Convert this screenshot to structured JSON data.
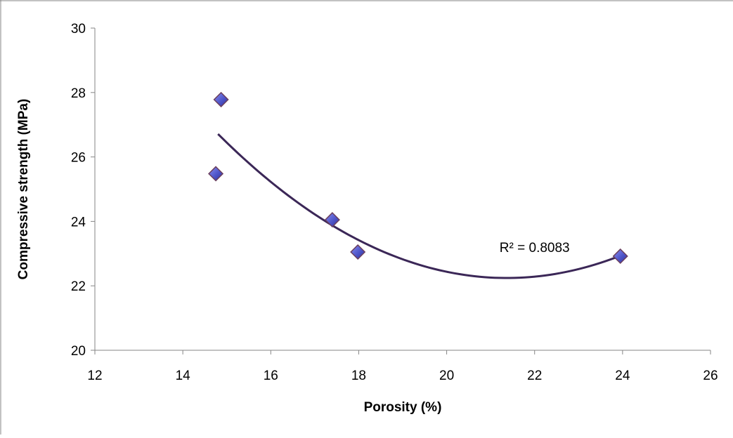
{
  "chart_data": {
    "type": "scatter",
    "title": "",
    "xlabel": "Porosity (%)",
    "ylabel": "Compressive strength (MPa)",
    "xlim": [
      12,
      26
    ],
    "ylim": [
      20,
      30
    ],
    "xticks": [
      12,
      14,
      16,
      18,
      20,
      22,
      24,
      26
    ],
    "yticks": [
      20,
      22,
      24,
      26,
      28,
      30
    ],
    "xtick_labels": [
      "12",
      "14",
      "16",
      "18",
      "20",
      "22",
      "24",
      "26"
    ],
    "ytick_labels": [
      "20",
      "22",
      "24",
      "26",
      "28",
      "30"
    ],
    "grid": false,
    "legend": "none",
    "series": [
      {
        "x": [
          14.75,
          14.87,
          17.4,
          17.98,
          23.95
        ],
        "y": [
          25.48,
          27.78,
          24.05,
          23.05,
          22.92
        ],
        "marker": "diamond",
        "color": "#5a5fc4"
      }
    ],
    "trendline": {
      "type": "polynomial",
      "order": 2,
      "color": "#3b2757",
      "x_range": [
        14.8,
        23.95
      ],
      "points": [
        {
          "x": 14.8,
          "y": 26.7
        },
        {
          "x": 17.4,
          "y": 23.9
        },
        {
          "x": 20.0,
          "y": 22.45
        },
        {
          "x": 21.36,
          "y": 22.2
        },
        {
          "x": 23.95,
          "y": 22.95
        }
      ]
    },
    "annotations": [
      {
        "text": "R² = 0.8083",
        "x": 22.0,
        "y": 23.2
      }
    ]
  }
}
